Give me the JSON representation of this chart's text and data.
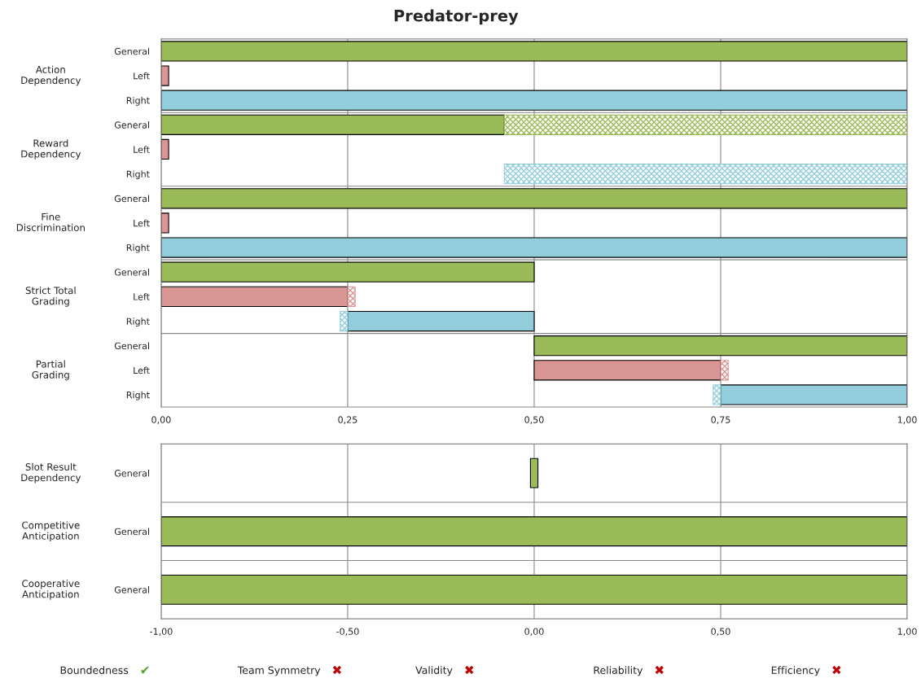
{
  "chart_data": [
    {
      "type": "bar",
      "orientation": "horizontal",
      "title": "Predator-prey",
      "categories": [
        "General",
        "Left",
        "Right",
        "General",
        "Left",
        "Right",
        "General",
        "Left",
        "Right",
        "General",
        "Left",
        "Right",
        "General",
        "Left",
        "Right"
      ],
      "annotations": [
        "Action\nDependency",
        "Reward\nDependency",
        "Fine\nDiscrimination",
        "Strict Total\nGrading",
        "Partial\nGrading"
      ],
      "series": [
        {
          "values": [
            1,
            0.01,
            1,
            0.46,
            0.01,
            null,
            1,
            0.01,
            1,
            0.5,
            0.25,
            0.25,
            0.5,
            0.25,
            0.25
          ],
          "base": [
            0,
            0,
            0,
            0,
            0,
            null,
            0,
            0,
            0,
            0,
            0,
            0.25,
            0.5,
            0.5,
            0.75
          ],
          "colors": [
            "#9bbb59",
            "#d99694",
            "#92cddc",
            "#9bbb59",
            "#d99694",
            "#92cddc",
            "#9bbb59",
            "#d99694",
            "#92cddc",
            "#9bbb59",
            "#d99694",
            "#92cddc",
            "#9bbb59",
            "#d99694",
            "#92cddc"
          ]
        },
        {
          "values": [
            null,
            null,
            null,
            0.54,
            null,
            0.54,
            null,
            null,
            null,
            null,
            0.01,
            0.01,
            null,
            0.01,
            0.01
          ],
          "base": [
            null,
            null,
            null,
            0.46,
            null,
            0.46,
            null,
            null,
            null,
            null,
            0.25,
            0.24,
            null,
            0.75,
            0.74
          ],
          "colors": [
            "#9bbb59",
            "#d99694",
            "#92cddc",
            "#9bbb59",
            "#d99694",
            "#92cddc",
            "#9bbb59",
            "#d99694",
            "#92cddc",
            "#9bbb59",
            "#d99694",
            "#92cddc",
            "#9bbb59",
            "#d99694",
            "#92cddc"
          ]
        }
      ],
      "xlim": [
        0,
        1
      ],
      "xticks": [
        {
          "value": 0,
          "label": "0,00"
        },
        {
          "value": 0.25,
          "label": "0,25"
        },
        {
          "value": 0.5,
          "label": "0,50"
        },
        {
          "value": 0.75,
          "label": "0,75"
        },
        {
          "value": 1,
          "label": "1,00"
        }
      ],
      "grid": "x"
    },
    {
      "type": "bar",
      "orientation": "horizontal",
      "categories": [
        "General",
        "General",
        "General"
      ],
      "annotations": [
        "Slot Result\nDependency",
        "Competitive\nAnticipation",
        "Cooperative\nAnticipation"
      ],
      "series": [
        {
          "values": [
            0.02,
            2,
            2
          ],
          "base": [
            -0.01,
            -1,
            -1
          ],
          "colors": [
            "#9bbb59",
            "#9bbb59",
            "#9bbb59"
          ]
        }
      ],
      "xlim": [
        -1,
        1
      ],
      "xticks": [
        {
          "value": -1,
          "label": "-1,00"
        },
        {
          "value": -0.5,
          "label": "-0,50"
        },
        {
          "value": 0,
          "label": "0,00"
        },
        {
          "value": 0.5,
          "label": "0,50"
        },
        {
          "value": 1,
          "label": "1,00"
        }
      ],
      "grid": "x"
    },
    {
      "type": "other",
      "categories": [
        "Boundedness",
        "Team Symmetry",
        "Validity",
        "Reliability",
        "Efficiency"
      ],
      "annotations": [
        "✔",
        "✖",
        "✖",
        "✖",
        "✖"
      ],
      "colors": [
        "#5aa02c",
        "#c00000",
        "#c00000",
        "#c00000",
        "#c00000"
      ]
    }
  ]
}
